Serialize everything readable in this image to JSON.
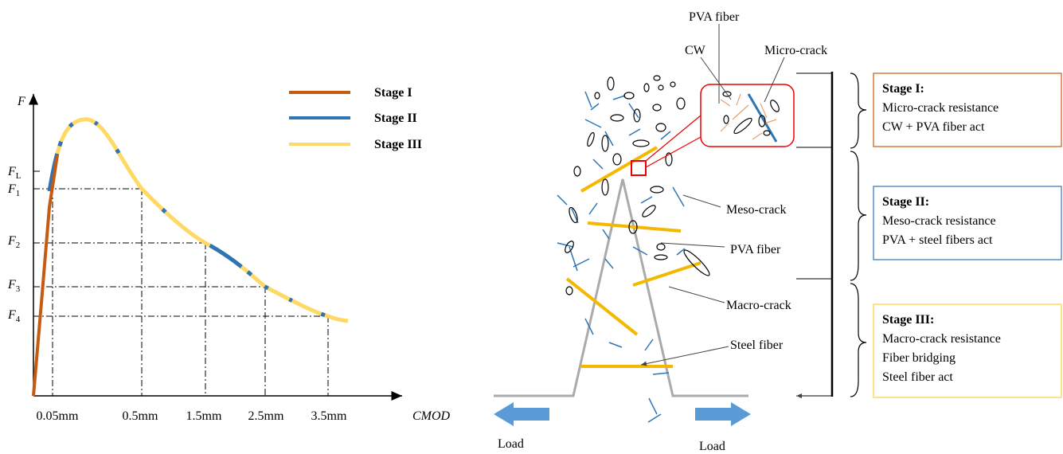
{
  "curve_plot": {
    "y_axis_label": "F",
    "x_axis_label": "CMOD",
    "y_labels": [
      {
        "base": "F",
        "sub": "L"
      },
      {
        "base": "F",
        "sub": "1"
      },
      {
        "base": "F",
        "sub": "2"
      },
      {
        "base": "F",
        "sub": "3"
      },
      {
        "base": "F",
        "sub": "4"
      }
    ],
    "x_labels": [
      "0.05mm",
      "0.5mm",
      "1.5mm",
      "2.5mm",
      "3.5mm"
    ],
    "legend": [
      "Stage I",
      "Stage II",
      "Stage III"
    ]
  },
  "crack_diagram": {
    "callouts": [
      "PVA fiber",
      "CW",
      "Micro-crack",
      "Meso-crack",
      "PVA fiber",
      "Macro-crack",
      "Steel fiber"
    ],
    "loads": [
      "Load",
      "Load"
    ]
  },
  "stages": [
    {
      "title": "Stage I:",
      "lines": [
        "Micro-crack resistance",
        "CW + PVA fiber act"
      ]
    },
    {
      "title": "Stage II:",
      "lines": [
        "Meso-crack resistance",
        "PVA + steel fibers act"
      ]
    },
    {
      "title": "Stage III:",
      "lines": [
        "Macro-crack resistance",
        "Fiber bridging",
        "Steel fiber act"
      ]
    }
  ]
}
